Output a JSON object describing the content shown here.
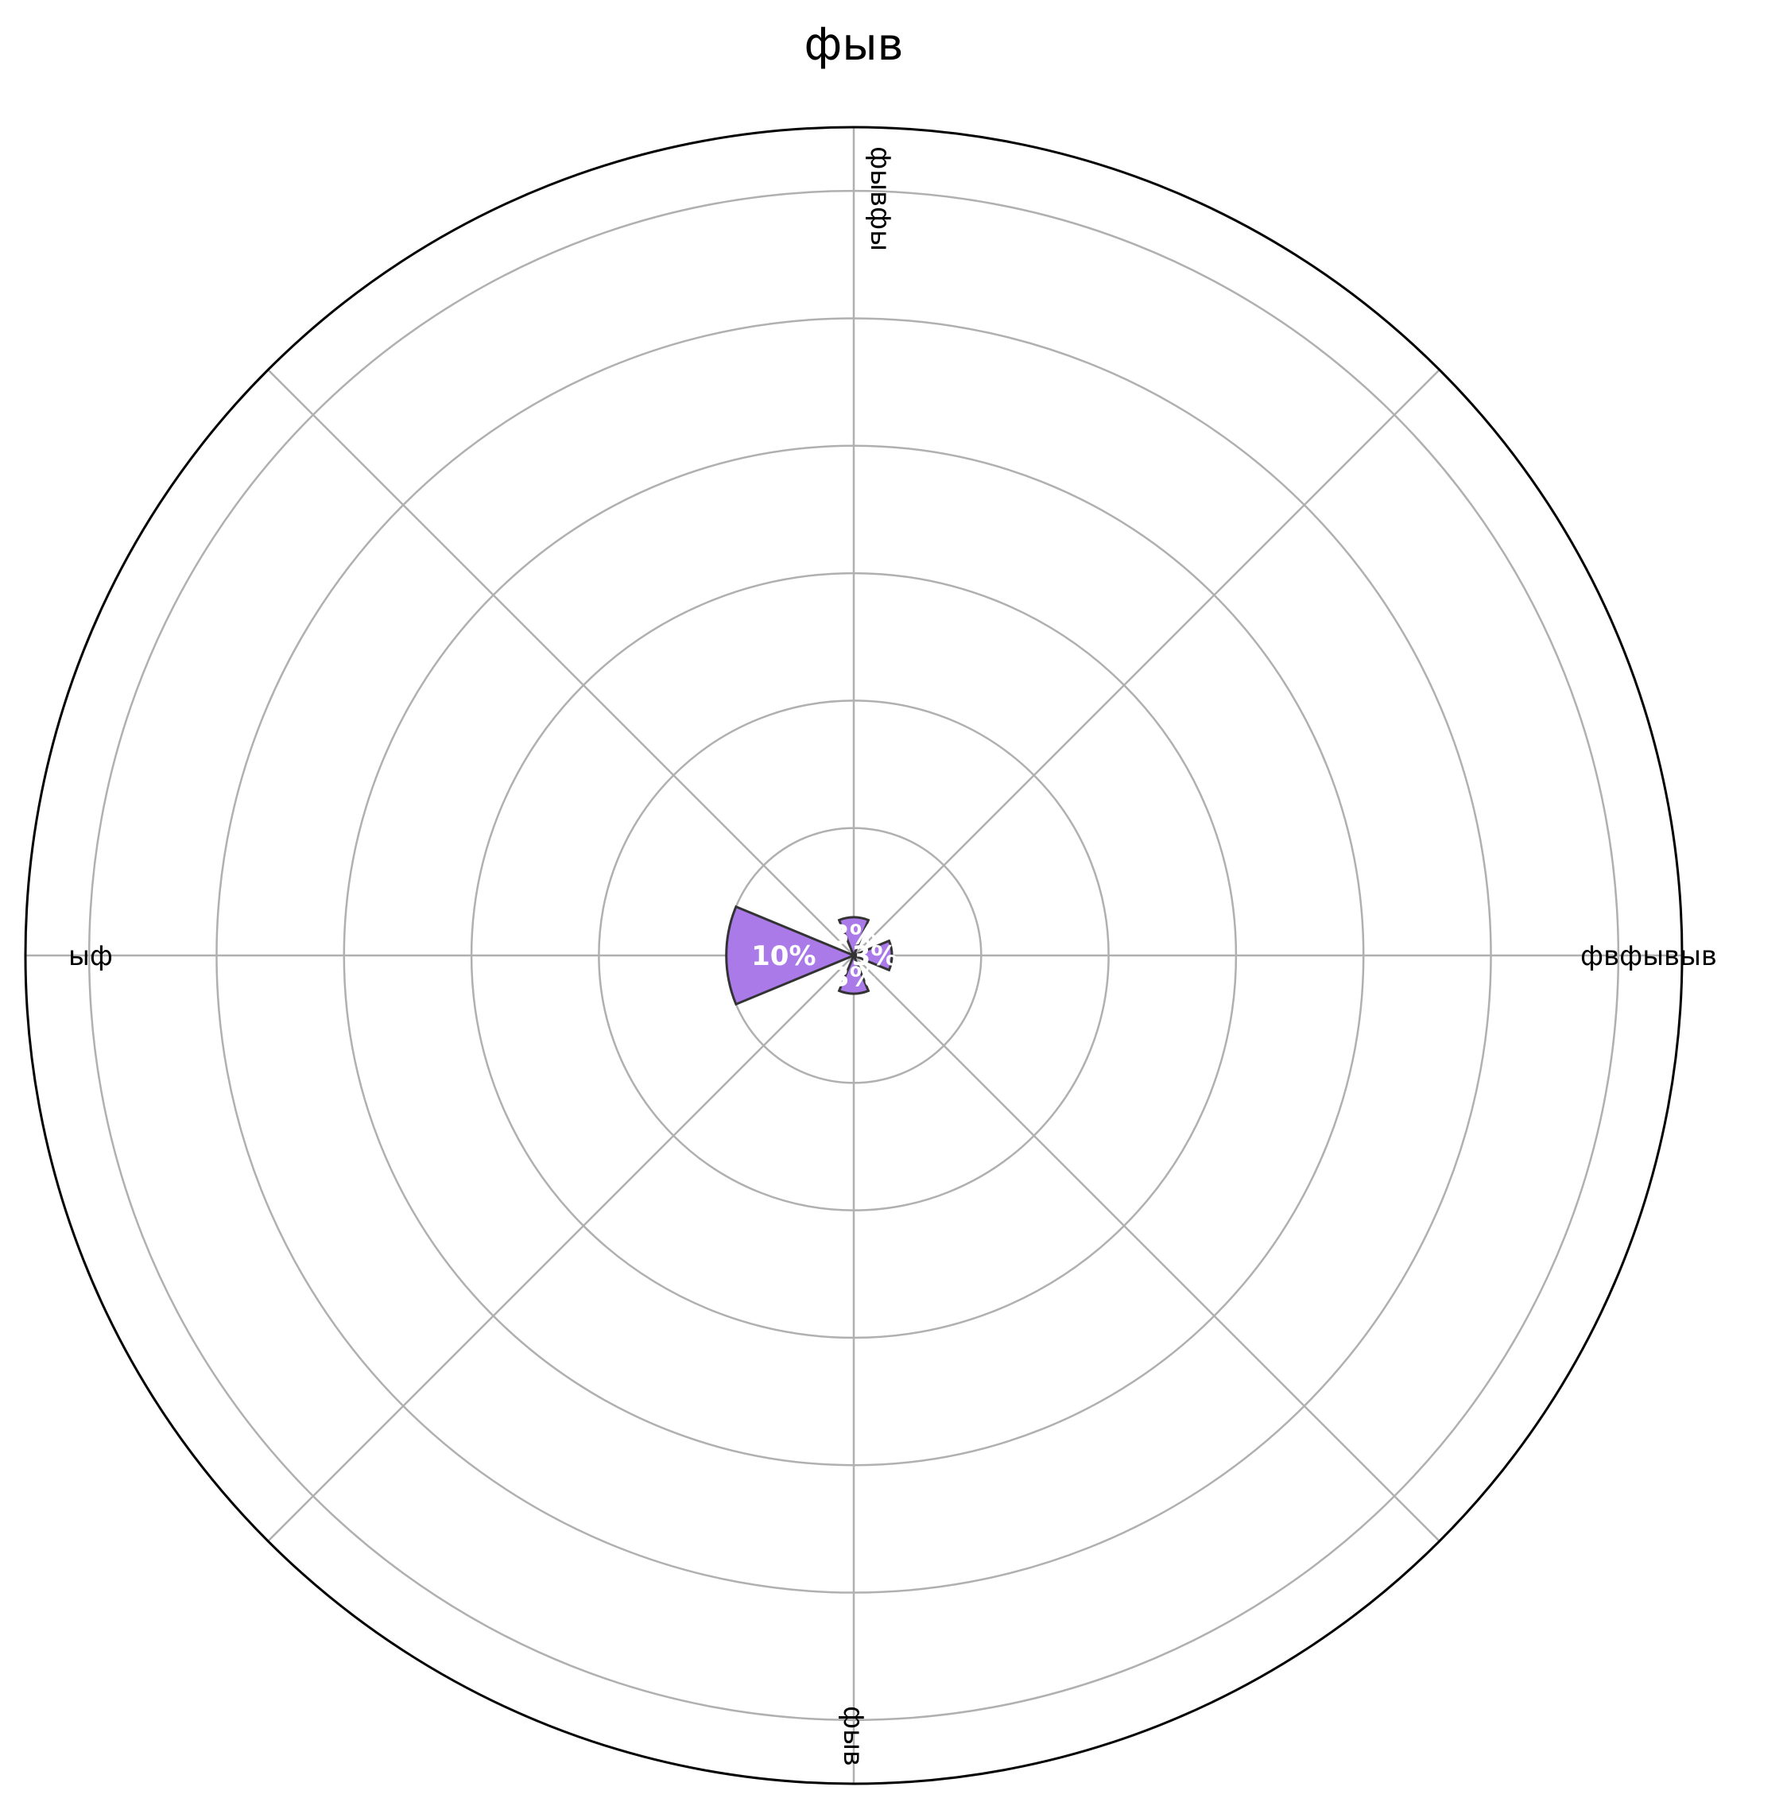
{
  "chart_data": {
    "type": "polar-bar",
    "title": "фыв",
    "categories": [
      "фывфы",
      "фвфывыв",
      "фыв",
      "ыф"
    ],
    "values": [
      3,
      3,
      3,
      10
    ],
    "data_labels": [
      "3%",
      "3%",
      "3%",
      "10%"
    ],
    "radial_range": [
      0,
      65
    ],
    "radial_gridlines": [
      10,
      20,
      30,
      40,
      50,
      60
    ],
    "angular_gridlines": 8,
    "grid": true,
    "radial_tick_labels_visible": false,
    "colors": {
      "bar_fill": "#a97ae8",
      "bar_edge": "#333333",
      "grid": "#b0b0b0",
      "outer_frame": "#000000",
      "label_text": "#ffffff"
    }
  }
}
